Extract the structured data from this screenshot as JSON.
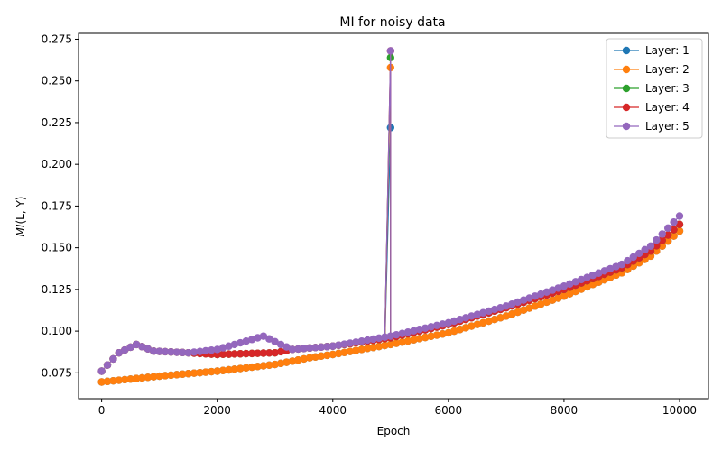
{
  "chart_data": {
    "type": "line",
    "title": "MI for noisy data",
    "xlabel": "Epoch",
    "ylabel_main": "MI",
    "ylabel_args": "(L, Y)",
    "xlim": [
      -400,
      10500
    ],
    "ylim": [
      0.0595,
      0.2785
    ],
    "xticks": [
      0,
      2000,
      4000,
      6000,
      8000,
      10000
    ],
    "yticks": [
      0.075,
      0.1,
      0.125,
      0.15,
      0.175,
      0.2,
      0.225,
      0.25,
      0.275
    ],
    "ytick_labels": [
      "0.075",
      "0.100",
      "0.125",
      "0.150",
      "0.175",
      "0.200",
      "0.225",
      "0.250",
      "0.275"
    ],
    "legend_position": "upper right",
    "marker": "circle",
    "series": [
      {
        "name": "Layer: 1",
        "color": "#1f77b4",
        "spike_at": 5000,
        "spike_value": 0.222,
        "points": [
          [
            0,
            0.0695
          ],
          [
            1000,
            0.073
          ],
          [
            2000,
            0.076
          ],
          [
            3000,
            0.08
          ],
          [
            3600,
            0.084
          ],
          [
            4000,
            0.086
          ],
          [
            5000,
            0.092
          ],
          [
            6000,
            0.099
          ],
          [
            7000,
            0.109
          ],
          [
            8000,
            0.121
          ],
          [
            9000,
            0.135
          ],
          [
            9500,
            0.145
          ],
          [
            10000,
            0.16
          ]
        ]
      },
      {
        "name": "Layer: 2",
        "color": "#ff7f0e",
        "spike_at": 5000,
        "spike_value": 0.258,
        "points": [
          [
            0,
            0.0695
          ],
          [
            1000,
            0.073
          ],
          [
            2000,
            0.076
          ],
          [
            3000,
            0.08
          ],
          [
            3600,
            0.084
          ],
          [
            4000,
            0.086
          ],
          [
            5000,
            0.092
          ],
          [
            6000,
            0.099
          ],
          [
            7000,
            0.109
          ],
          [
            8000,
            0.121
          ],
          [
            9000,
            0.135
          ],
          [
            9500,
            0.145
          ],
          [
            10000,
            0.16
          ]
        ]
      },
      {
        "name": "Layer: 3",
        "color": "#2ca02c",
        "spike_at": 5000,
        "spike_value": 0.264,
        "points": [
          [
            0,
            0.076
          ],
          [
            300,
            0.087
          ],
          [
            600,
            0.092
          ],
          [
            900,
            0.088
          ],
          [
            1500,
            0.087
          ],
          [
            2000,
            0.086
          ],
          [
            3000,
            0.087
          ],
          [
            3300,
            0.089
          ],
          [
            4000,
            0.091
          ],
          [
            5000,
            0.096
          ],
          [
            6000,
            0.104
          ],
          [
            7000,
            0.114
          ],
          [
            8000,
            0.125
          ],
          [
            9000,
            0.138
          ],
          [
            9500,
            0.148
          ],
          [
            10000,
            0.164
          ]
        ]
      },
      {
        "name": "Layer: 4",
        "color": "#d62728",
        "spike_at": 5000,
        "spike_value": 0.268,
        "points": [
          [
            0,
            0.076
          ],
          [
            300,
            0.087
          ],
          [
            600,
            0.092
          ],
          [
            900,
            0.088
          ],
          [
            1500,
            0.087
          ],
          [
            2000,
            0.086
          ],
          [
            3000,
            0.087
          ],
          [
            3300,
            0.089
          ],
          [
            4000,
            0.091
          ],
          [
            5000,
            0.096
          ],
          [
            6000,
            0.104
          ],
          [
            7000,
            0.114
          ],
          [
            8000,
            0.125
          ],
          [
            9000,
            0.138
          ],
          [
            9500,
            0.148
          ],
          [
            10000,
            0.164
          ]
        ]
      },
      {
        "name": "Layer: 5",
        "color": "#9467bd",
        "spike_at": 5000,
        "spike_value": 0.268,
        "points": [
          [
            0,
            0.076
          ],
          [
            300,
            0.087
          ],
          [
            600,
            0.092
          ],
          [
            900,
            0.088
          ],
          [
            1500,
            0.087
          ],
          [
            2000,
            0.089
          ],
          [
            2800,
            0.097
          ],
          [
            3100,
            0.092
          ],
          [
            3300,
            0.089
          ],
          [
            4000,
            0.091
          ],
          [
            5000,
            0.097
          ],
          [
            6000,
            0.105
          ],
          [
            7000,
            0.115
          ],
          [
            8000,
            0.127
          ],
          [
            9000,
            0.14
          ],
          [
            9500,
            0.151
          ],
          [
            10000,
            0.169
          ]
        ]
      }
    ]
  }
}
